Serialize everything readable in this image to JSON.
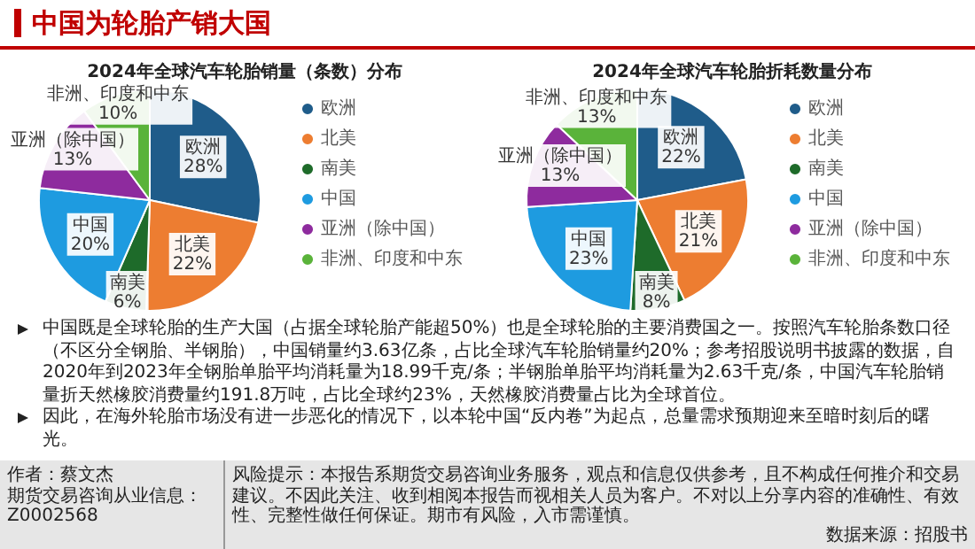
{
  "chart_data": [
    {
      "type": "pie",
      "title": "2024年全球汽车轮胎销量（条数）分布",
      "categories": [
        "欧洲",
        "北美",
        "南美",
        "中国",
        "亚洲（除中国）",
        "非洲、印度和中东"
      ],
      "values": [
        28,
        22,
        6,
        20,
        13,
        10
      ],
      "value_labels": [
        "28%",
        "22%",
        "6%",
        "20%",
        "13%",
        "10%"
      ],
      "colors": [
        "#1f5c8a",
        "#ed7d31",
        "#1e6b2a",
        "#1e9be0",
        "#8e2b9e",
        "#5ab33a"
      ],
      "legend": "right",
      "annotations": [
        "中国为轮胎产销大国",
        "中国既是全球轮胎的生产大国（占据全球轮胎产能超50%）也是全球轮胎的主要消费国之一。按照汽车轮胎条数口径（不区分全钢胎、半钢胎），中国销量约3.63亿条，占比全球汽车轮胎销量约20%；参考招股说明书披露的数据，自2020年到2023年全钢胎单胎平均消耗量为18.99千克/条；半钢胎单胎平均消耗量为2.63千克/条，中国汽车轮胎销量折天然橡胶消费量约191.8万吨，占比全球约23%，天然橡胶消费量占比为全球首位。",
        "因此，在海外轮胎市场没有进一步恶化的情况下，以本轮中国“反内卷”为起点，总量需求预期迎来至暗时刻后的曙光。"
      ]
    },
    {
      "type": "pie",
      "title": "2024年全球汽车轮胎折耗数量分布",
      "categories": [
        "欧洲",
        "北美",
        "南美",
        "中国",
        "亚洲（除中国）",
        "非洲、印度和中东"
      ],
      "values": [
        22,
        21,
        8,
        23,
        13,
        13
      ],
      "value_labels": [
        "22%",
        "21%",
        "8%",
        "23%",
        "13%",
        "13%"
      ],
      "colors": [
        "#1f5c8a",
        "#ed7d31",
        "#1e6b2a",
        "#1e9be0",
        "#8e2b9e",
        "#5ab33a"
      ],
      "legend": "right",
      "annotations": [
        "作者：蔡文杰",
        "期货交易咨询从业信息：Z0002568",
        "风险提示：本报告系期货交易咨询业务服务，观点和信息仅供参考，且不构成任何推介和交易建议。不因此关注、收到相阅本报告而视相关人员为客户。不对以上分享内容的准确性、有效性、完整性做任何保证。期市有风险，入市需谨慎。",
        "数据来源：招股书"
      ]
    }
  ]
}
